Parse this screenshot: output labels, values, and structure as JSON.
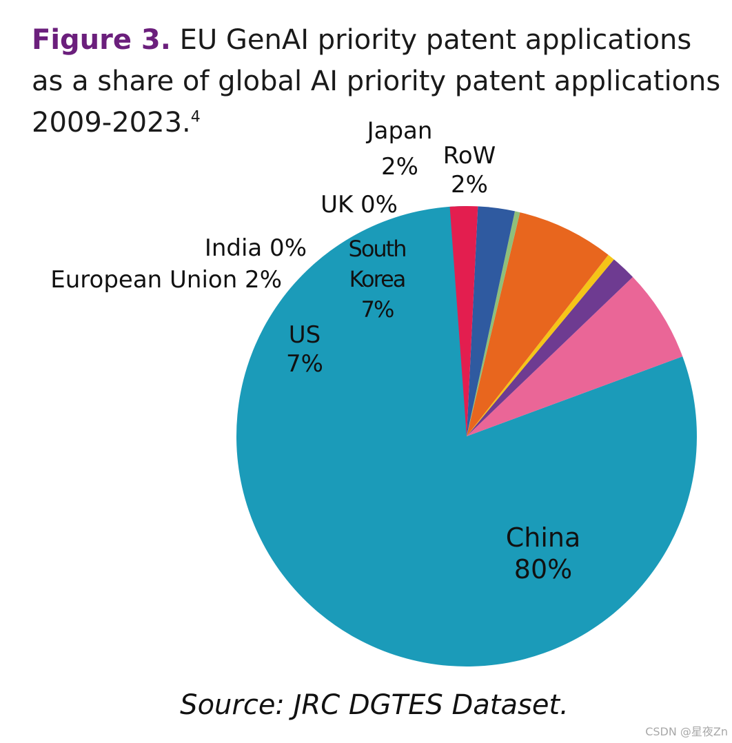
{
  "title": {
    "prefix": "Figure 3.",
    "text": " EU GenAI priority patent applications as a share of global AI priority patent applications 2009-2023.",
    "footnote": "4"
  },
  "source": "Source: JRC DGTES Dataset.",
  "watermark": "CSDN @星夜Zn",
  "chart_data": {
    "type": "pie",
    "start": "12 o'clock",
    "direction": "counterclockwise",
    "slices": [
      {
        "name": "China",
        "value": 80,
        "label": "80%",
        "color": "#1b9bb9"
      },
      {
        "name": "US",
        "value": 7,
        "label": "7%",
        "color": "#ea6697"
      },
      {
        "name": "European Union",
        "value": 2,
        "label": "2%",
        "color": "#6e3b91"
      },
      {
        "name": "India",
        "value": 0,
        "label": "0%",
        "color": "#f5c518"
      },
      {
        "name": "South Korea",
        "value": 7,
        "label": "7%",
        "color": "#e8661e"
      },
      {
        "name": "UK",
        "value": 0,
        "label": "0%",
        "color": "#8fbf7a"
      },
      {
        "name": "Japan",
        "value": 2,
        "label": "2%",
        "color": "#2f5aa0"
      },
      {
        "name": "RoW",
        "value": 2,
        "label": "2%",
        "color": "#e31e4f"
      }
    ],
    "labels": {
      "china": [
        "China",
        "80%"
      ],
      "us": [
        "US",
        "7%"
      ],
      "eu": [
        "European Union 2%"
      ],
      "india": [
        "India 0%"
      ],
      "south_korea": [
        "South",
        "Korea",
        "7%"
      ],
      "uk": [
        "UK 0%"
      ],
      "japan": [
        "Japan",
        "2%"
      ],
      "row": [
        "RoW",
        "2%"
      ]
    }
  }
}
